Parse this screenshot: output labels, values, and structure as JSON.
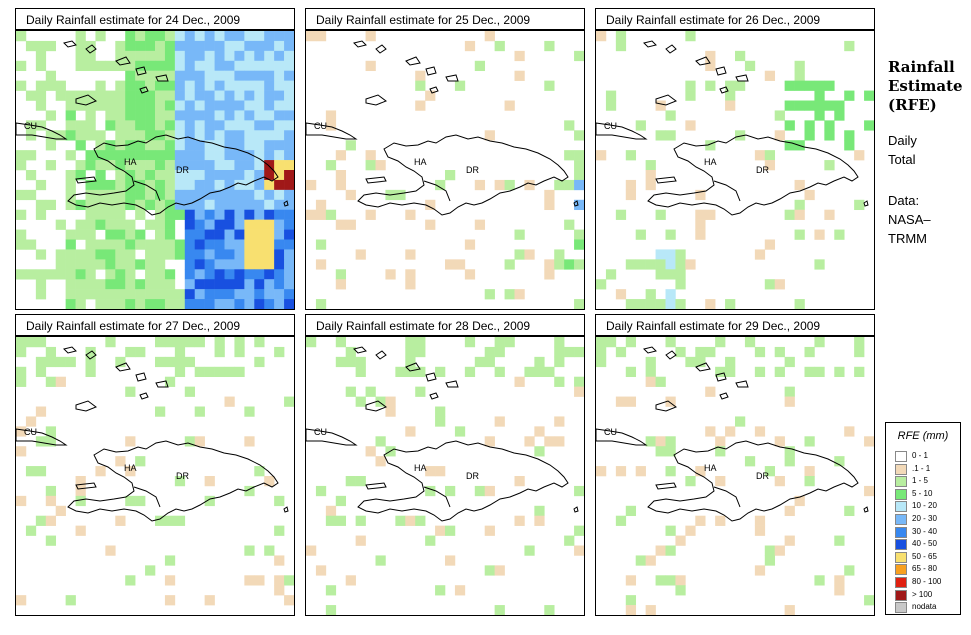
{
  "panels": [
    {
      "title": "Daily Rainfall estimate for  24 Dec., 2009",
      "intensity": "heavy"
    },
    {
      "title": "Daily Rainfall estimate for  25 Dec., 2009",
      "intensity": "light"
    },
    {
      "title": "Daily Rainfall estimate for  26 Dec., 2009",
      "intensity": "moderate"
    },
    {
      "title": "Daily Rainfall estimate for  27 Dec., 2009",
      "intensity": "sparse"
    },
    {
      "title": "Daily Rainfall estimate for  28 Dec., 2009",
      "intensity": "sparse"
    },
    {
      "title": "Daily Rainfall estimate for  29 Dec., 2009",
      "intensity": "sparse"
    }
  ],
  "map_labels": {
    "cu": "CU",
    "ha": "HA",
    "dr": "DR"
  },
  "side": {
    "title_line1": "Rainfall",
    "title_line2": "Estimate",
    "title_line3": "(RFE)",
    "period_line1": "Daily",
    "period_line2": "Total",
    "data_line1": "Data:",
    "data_line2": "NASA–",
    "data_line3": "TRMM"
  },
  "legend": {
    "title": "RFE (mm)",
    "items": [
      {
        "label": "0 - 1",
        "color": "#ffffff"
      },
      {
        "label": ".1 - 1",
        "color": "#f2d9b8"
      },
      {
        "label": "1 - 5",
        "color": "#b8eea0"
      },
      {
        "label": "5 - 10",
        "color": "#78e878"
      },
      {
        "label": "10 - 20",
        "color": "#b8e8f8"
      },
      {
        "label": "20 - 30",
        "color": "#78b8f8"
      },
      {
        "label": "30 - 40",
        "color": "#3888f0"
      },
      {
        "label": "40 - 50",
        "color": "#1850e0"
      },
      {
        "label": "50 - 65",
        "color": "#f8e070"
      },
      {
        "label": "65 - 80",
        "color": "#f8a020"
      },
      {
        "label": "80 - 100",
        "color": "#e02010"
      },
      {
        "label": "> 100",
        "color": "#a01818"
      },
      {
        "label": "nodata",
        "color": "#c8c8c8"
      }
    ]
  }
}
